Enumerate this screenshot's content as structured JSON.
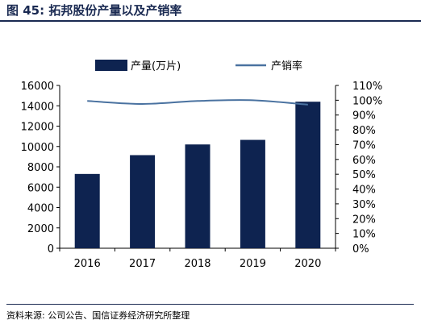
{
  "figure": {
    "title": "图 45:  拓邦股份产量以及产销率",
    "source": "资料来源:  公司公告、国信证券经济研究所整理"
  },
  "colors": {
    "bar": "#0e2350",
    "line": "#4a72a0",
    "accent": "#1a2a52"
  },
  "chart_data": {
    "type": "bar+line",
    "categories": [
      "2016",
      "2017",
      "2018",
      "2019",
      "2020"
    ],
    "series": [
      {
        "name": "产量(万片)",
        "type": "bar",
        "axis": "left",
        "values": [
          7300,
          9150,
          10200,
          10650,
          14400
        ]
      },
      {
        "name": "产销率",
        "type": "line",
        "axis": "right",
        "values": [
          99.5,
          97.5,
          99.5,
          100.0,
          97.0
        ]
      }
    ],
    "left_axis": {
      "ylim": [
        0,
        16000
      ],
      "ticks": [
        "0",
        "2000",
        "4000",
        "6000",
        "8000",
        "10000",
        "12000",
        "14000",
        "16000"
      ]
    },
    "right_axis": {
      "ylim": [
        0,
        110
      ],
      "ticks": [
        "0%",
        "10%",
        "20%",
        "30%",
        "40%",
        "50%",
        "60%",
        "70%",
        "80%",
        "90%",
        "100%",
        "110%"
      ]
    },
    "legend_position": "top",
    "grid": false
  }
}
